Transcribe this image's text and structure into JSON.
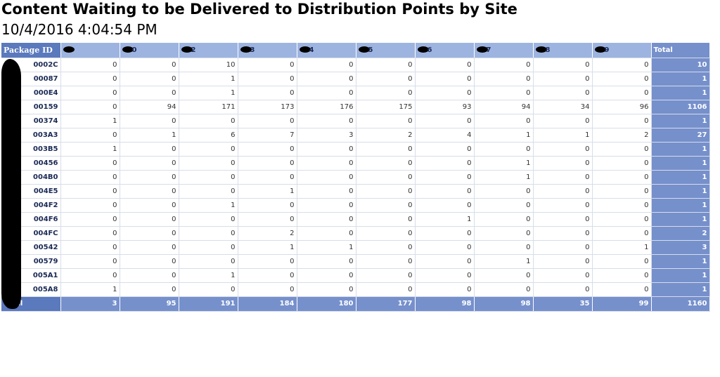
{
  "report": {
    "title": "Content Waiting to be Delivered to Distribution Points by Site",
    "timestamp": "10/4/2016 4:04:54 PM"
  },
  "table": {
    "header": {
      "package_label": "Package ID",
      "site_suffixes": [
        "",
        "0",
        "2",
        "3",
        "4",
        "5",
        "6",
        "7",
        "8",
        "9"
      ],
      "total_label": "Total"
    },
    "rows": [
      {
        "id": "0002C",
        "values": [
          "0",
          "0",
          "10",
          "0",
          "0",
          "0",
          "0",
          "0",
          "0",
          "0"
        ],
        "total": "10"
      },
      {
        "id": "00087",
        "values": [
          "0",
          "0",
          "1",
          "0",
          "0",
          "0",
          "0",
          "0",
          "0",
          "0"
        ],
        "total": "1"
      },
      {
        "id": "000E4",
        "values": [
          "0",
          "0",
          "1",
          "0",
          "0",
          "0",
          "0",
          "0",
          "0",
          "0"
        ],
        "total": "1"
      },
      {
        "id": "00159",
        "values": [
          "0",
          "94",
          "171",
          "173",
          "176",
          "175",
          "93",
          "94",
          "34",
          "96"
        ],
        "total": "1106"
      },
      {
        "id": "00374",
        "values": [
          "1",
          "0",
          "0",
          "0",
          "0",
          "0",
          "0",
          "0",
          "0",
          "0"
        ],
        "total": "1"
      },
      {
        "id": "003A3",
        "values": [
          "0",
          "1",
          "6",
          "7",
          "3",
          "2",
          "4",
          "1",
          "1",
          "2"
        ],
        "total": "27"
      },
      {
        "id": "003B5",
        "values": [
          "1",
          "0",
          "0",
          "0",
          "0",
          "0",
          "0",
          "0",
          "0",
          "0"
        ],
        "total": "1"
      },
      {
        "id": "00456",
        "values": [
          "0",
          "0",
          "0",
          "0",
          "0",
          "0",
          "0",
          "1",
          "0",
          "0"
        ],
        "total": "1"
      },
      {
        "id": "004B0",
        "values": [
          "0",
          "0",
          "0",
          "0",
          "0",
          "0",
          "0",
          "1",
          "0",
          "0"
        ],
        "total": "1"
      },
      {
        "id": "004E5",
        "values": [
          "0",
          "0",
          "0",
          "1",
          "0",
          "0",
          "0",
          "0",
          "0",
          "0"
        ],
        "total": "1"
      },
      {
        "id": "004F2",
        "values": [
          "0",
          "0",
          "1",
          "0",
          "0",
          "0",
          "0",
          "0",
          "0",
          "0"
        ],
        "total": "1"
      },
      {
        "id": "004F6",
        "values": [
          "0",
          "0",
          "0",
          "0",
          "0",
          "0",
          "1",
          "0",
          "0",
          "0"
        ],
        "total": "1"
      },
      {
        "id": "004FC",
        "values": [
          "0",
          "0",
          "0",
          "2",
          "0",
          "0",
          "0",
          "0",
          "0",
          "0"
        ],
        "total": "2"
      },
      {
        "id": "00542",
        "values": [
          "0",
          "0",
          "0",
          "1",
          "1",
          "0",
          "0",
          "0",
          "0",
          "1"
        ],
        "total": "3"
      },
      {
        "id": "00579",
        "values": [
          "0",
          "0",
          "0",
          "0",
          "0",
          "0",
          "0",
          "1",
          "0",
          "0"
        ],
        "total": "1"
      },
      {
        "id": "005A1",
        "values": [
          "0",
          "0",
          "1",
          "0",
          "0",
          "0",
          "0",
          "0",
          "0",
          "0"
        ],
        "total": "1"
      },
      {
        "id": "005A8",
        "values": [
          "1",
          "0",
          "0",
          "0",
          "0",
          "0",
          "0",
          "0",
          "0",
          "0"
        ],
        "total": "1"
      }
    ],
    "footer": {
      "label": "Total",
      "values": [
        "3",
        "95",
        "191",
        "184",
        "180",
        "177",
        "98",
        "98",
        "35",
        "99"
      ],
      "grand_total": "1160"
    }
  }
}
